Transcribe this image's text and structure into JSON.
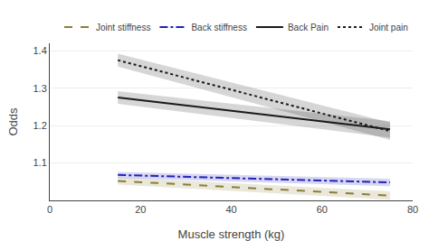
{
  "chart_data": {
    "type": "line",
    "x": [
      15,
      75
    ],
    "series": [
      {
        "name": "Joint pain",
        "color": "#1a1a1a",
        "line_style": "dotted",
        "values": [
          1.375,
          1.185
        ],
        "ci_lower": [
          1.358,
          1.162
        ],
        "ci_upper": [
          1.392,
          1.208
        ]
      },
      {
        "name": "Back Pain",
        "color": "#1a1a1a",
        "line_style": "solid",
        "values": [
          1.275,
          1.19
        ],
        "ci_lower": [
          1.258,
          1.168
        ],
        "ci_upper": [
          1.292,
          1.212
        ]
      },
      {
        "name": "Back stiffness",
        "color": "#2222bb",
        "line_style": "dashdot",
        "values": [
          1.068,
          1.048
        ],
        "ci_lower": [
          1.06,
          1.038
        ],
        "ci_upper": [
          1.076,
          1.058
        ]
      },
      {
        "name": "Joint stiffness",
        "color": "#8b7d3a",
        "line_style": "dashed",
        "values": [
          1.052,
          1.013
        ],
        "ci_lower": [
          1.042,
          1.002
        ],
        "ci_upper": [
          1.062,
          1.024
        ]
      }
    ],
    "x_label": "Muscle strength (kg)",
    "y_label": "Odds",
    "xlim": [
      0,
      80
    ],
    "ylim": [
      1.0,
      1.42
    ],
    "xticks": [
      0,
      20,
      40,
      60,
      80
    ],
    "yticks": [
      1.1,
      1.2,
      1.3,
      1.4
    ],
    "grid": "y",
    "legend": "upper right"
  }
}
